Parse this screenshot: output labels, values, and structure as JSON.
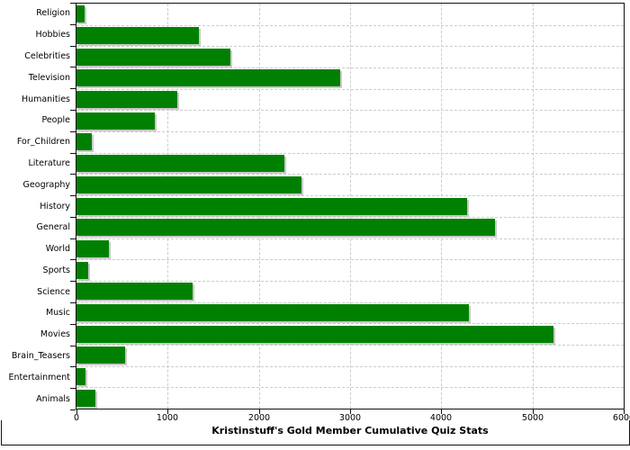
{
  "chart_data": {
    "type": "bar",
    "orientation": "horizontal",
    "title": "Kristinstuff's Gold Member Cumulative Quiz Stats",
    "categories": [
      "Religion",
      "Hobbies",
      "Celebrities",
      "Television",
      "Humanities",
      "People",
      "For_Children",
      "Literature",
      "Geography",
      "History",
      "General",
      "World",
      "Sports",
      "Science",
      "Music",
      "Movies",
      "Brain_Teasers",
      "Entertainment",
      "Animals"
    ],
    "values": [
      85,
      1340,
      1690,
      2895,
      1110,
      860,
      170,
      2280,
      2470,
      4280,
      4590,
      355,
      125,
      1270,
      4300,
      5230,
      535,
      95,
      210
    ],
    "xlabel": "",
    "ylabel": "",
    "xlim": [
      0,
      6000
    ],
    "x_ticks": [
      0,
      1000,
      2000,
      3000,
      4000,
      5000,
      6000
    ],
    "grid": "dashed, both axes",
    "legend_position": "none",
    "colors": {
      "bar": "#008000",
      "bar_shadow": "#c9c9c9",
      "grid": "#cccccc",
      "axis": "#111111",
      "background": "#ffffff",
      "text": "#000000"
    }
  }
}
